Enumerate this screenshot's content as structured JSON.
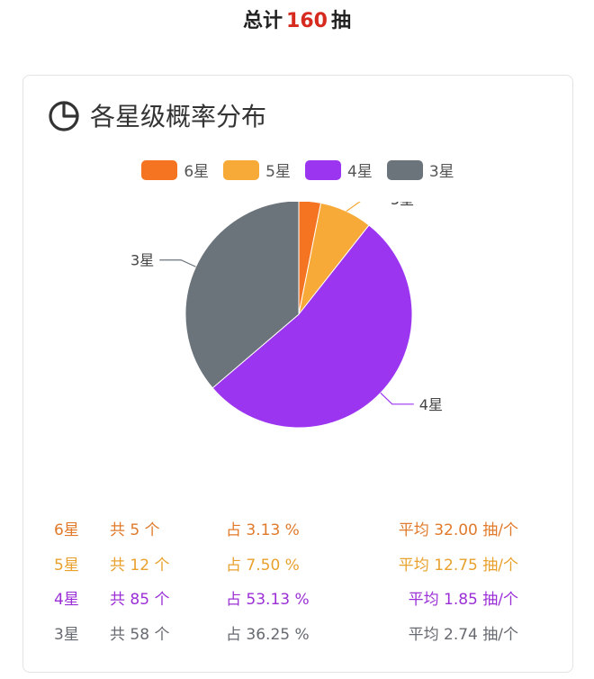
{
  "header": {
    "prefix": "总计",
    "total": "160",
    "suffix": "抽"
  },
  "card": {
    "title": "各星级概率分布",
    "icon": "pie-chart-icon"
  },
  "chart_data": {
    "type": "pie",
    "categories": [
      "6星",
      "5星",
      "4星",
      "3星"
    ],
    "values": [
      5,
      12,
      85,
      58
    ],
    "colors": [
      "#f47421",
      "#f7aa37",
      "#9b35f0",
      "#6b737b"
    ],
    "legend_placement": "top"
  },
  "stats": [
    {
      "name": "6星",
      "count": "共 5 个",
      "pct": "占 3.13 %",
      "avg": "平均 32.00 抽/个",
      "color": "#e07a2a"
    },
    {
      "name": "5星",
      "count": "共 12 个",
      "pct": "占 7.50 %",
      "avg": "平均 12.75 抽/个",
      "color": "#e8a12d"
    },
    {
      "name": "4星",
      "count": "共 85 个",
      "pct": "占 53.13 %",
      "avg": "平均 1.85 抽/个",
      "color": "#9b2fd6"
    },
    {
      "name": "3星",
      "count": "共 58 个",
      "pct": "占 36.25 %",
      "avg": "平均 2.74 抽/个",
      "color": "#666a70"
    }
  ]
}
